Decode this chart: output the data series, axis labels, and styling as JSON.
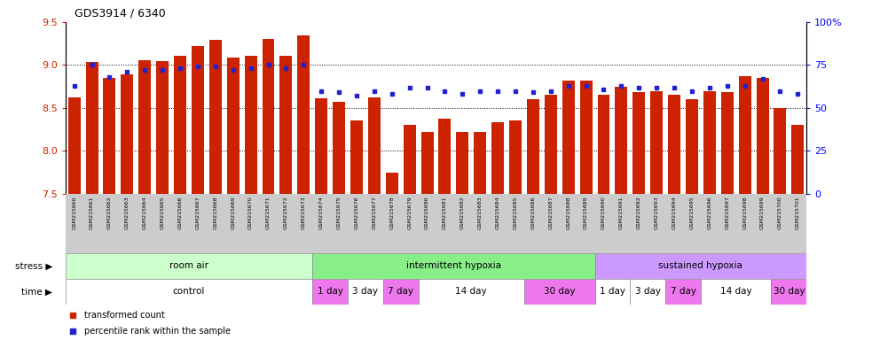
{
  "title": "GDS3914 / 6340",
  "samples": [
    "GSM215660",
    "GSM215661",
    "GSM215662",
    "GSM215663",
    "GSM215664",
    "GSM215665",
    "GSM215666",
    "GSM215667",
    "GSM215668",
    "GSM215669",
    "GSM215670",
    "GSM215671",
    "GSM215672",
    "GSM215673",
    "GSM215674",
    "GSM215675",
    "GSM215676",
    "GSM215677",
    "GSM215678",
    "GSM215679",
    "GSM215680",
    "GSM215681",
    "GSM215682",
    "GSM215683",
    "GSM215684",
    "GSM215685",
    "GSM215686",
    "GSM215687",
    "GSM215688",
    "GSM215689",
    "GSM215690",
    "GSM215691",
    "GSM215692",
    "GSM215693",
    "GSM215694",
    "GSM215695",
    "GSM215696",
    "GSM215697",
    "GSM215698",
    "GSM215699",
    "GSM215700",
    "GSM215701"
  ],
  "bar_values": [
    8.62,
    9.04,
    8.85,
    8.89,
    9.06,
    9.05,
    9.11,
    9.22,
    9.29,
    9.09,
    9.11,
    9.3,
    9.11,
    9.35,
    8.61,
    8.57,
    8.35,
    8.62,
    7.75,
    8.3,
    8.22,
    8.38,
    8.22,
    8.22,
    8.33,
    8.35,
    8.6,
    8.65,
    8.82,
    8.82,
    8.65,
    8.75,
    8.68,
    8.7,
    8.65,
    8.6,
    8.7,
    8.68,
    8.87,
    8.85,
    8.5,
    8.3
  ],
  "percentile_values_pct": [
    63,
    75,
    68,
    71,
    72,
    72,
    73,
    74,
    74,
    72,
    73,
    75,
    73,
    75,
    60,
    59,
    57,
    60,
    58,
    62,
    62,
    60,
    58,
    60,
    60,
    60,
    59,
    60,
    63,
    63,
    61,
    63,
    62,
    62,
    62,
    60,
    62,
    63,
    63,
    67,
    60,
    58
  ],
  "ylim_left": [
    7.5,
    9.5
  ],
  "yticks_left": [
    7.5,
    8.0,
    8.5,
    9.0,
    9.5
  ],
  "yticks_right": [
    0,
    25,
    50,
    75,
    100
  ],
  "bar_color": "#cc2200",
  "dot_color": "#2222cc",
  "stress_groups": [
    {
      "label": "room air",
      "start": 0,
      "end": 13,
      "color": "#ccffcc"
    },
    {
      "label": "intermittent hypoxia",
      "start": 14,
      "end": 29,
      "color": "#88ee88"
    },
    {
      "label": "sustained hypoxia",
      "start": 30,
      "end": 41,
      "color": "#cc99ff"
    }
  ],
  "time_groups": [
    {
      "label": "control",
      "start": 0,
      "end": 13,
      "color": "#ffffff"
    },
    {
      "label": "1 day",
      "start": 14,
      "end": 15,
      "color": "#ee77ee"
    },
    {
      "label": "3 day",
      "start": 16,
      "end": 17,
      "color": "#ffffff"
    },
    {
      "label": "7 day",
      "start": 18,
      "end": 19,
      "color": "#ee77ee"
    },
    {
      "label": "14 day",
      "start": 20,
      "end": 25,
      "color": "#ffffff"
    },
    {
      "label": "30 day",
      "start": 26,
      "end": 29,
      "color": "#ee77ee"
    },
    {
      "label": "1 day",
      "start": 30,
      "end": 31,
      "color": "#ffffff"
    },
    {
      "label": "3 day",
      "start": 32,
      "end": 33,
      "color": "#ffffff"
    },
    {
      "label": "7 day",
      "start": 34,
      "end": 35,
      "color": "#ee77ee"
    },
    {
      "label": "14 day",
      "start": 36,
      "end": 39,
      "color": "#ffffff"
    },
    {
      "label": "30 day",
      "start": 40,
      "end": 41,
      "color": "#ee77ee"
    }
  ],
  "legend_items": [
    {
      "label": "transformed count",
      "color": "#cc2200"
    },
    {
      "label": "percentile rank within the sample",
      "color": "#2222cc"
    }
  ],
  "names_bg_color": "#cccccc",
  "stress_label": "stress",
  "time_label": "time"
}
